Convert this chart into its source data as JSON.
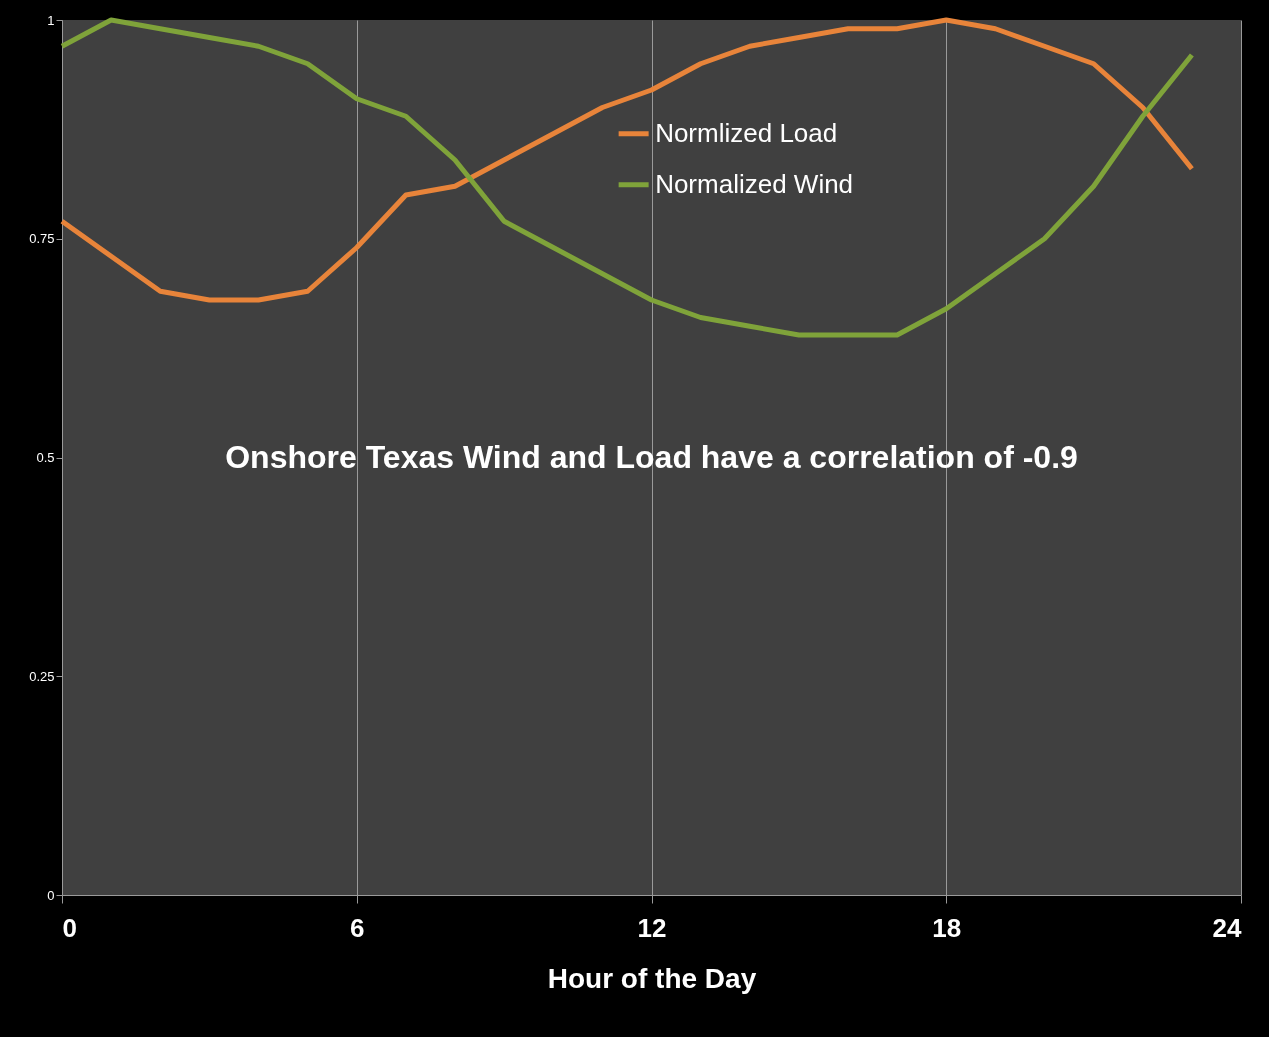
{
  "chart_data": {
    "type": "line",
    "xlabel": "Hour of the Day",
    "x": [
      0,
      1,
      2,
      3,
      4,
      5,
      6,
      7,
      8,
      9,
      10,
      11,
      12,
      13,
      14,
      15,
      16,
      17,
      18,
      19,
      20,
      21,
      22,
      23
    ],
    "series": [
      {
        "name": "Normlized Load",
        "color": "#e8843a",
        "values": [
          0.77,
          0.73,
          0.69,
          0.68,
          0.68,
          0.69,
          0.74,
          0.8,
          0.81,
          0.84,
          0.87,
          0.9,
          0.92,
          0.95,
          0.97,
          0.98,
          0.99,
          0.99,
          1.0,
          0.99,
          0.97,
          0.95,
          0.9,
          0.83
        ]
      },
      {
        "name": "Normalized Wind",
        "color": "#7fa33a",
        "values": [
          0.97,
          1.0,
          0.99,
          0.98,
          0.97,
          0.95,
          0.91,
          0.89,
          0.84,
          0.77,
          0.74,
          0.71,
          0.68,
          0.66,
          0.65,
          0.64,
          0.64,
          0.64,
          0.67,
          0.71,
          0.75,
          0.81,
          0.89,
          0.96
        ]
      }
    ],
    "xlim": [
      0,
      24
    ],
    "xticks": [
      0,
      6,
      12,
      18,
      24
    ],
    "ylim": [
      0,
      1
    ],
    "yticks": [
      0,
      0.25,
      0.5,
      0.75,
      1
    ],
    "grid": "x",
    "legend": "top",
    "marker": "none",
    "line_style": "solid",
    "annotations": [
      "Onshore Texas Wind and Load have a correlation of -0.9"
    ]
  }
}
